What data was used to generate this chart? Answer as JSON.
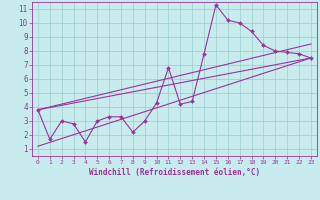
{
  "xlabel": "Windchill (Refroidissement éolien,°C)",
  "bg_color": "#c8ecee",
  "line_color": "#993399",
  "grid_color": "#99cccc",
  "xlim": [
    -0.5,
    23.5
  ],
  "ylim": [
    0.5,
    11.5
  ],
  "xticks": [
    0,
    1,
    2,
    3,
    4,
    5,
    6,
    7,
    8,
    9,
    10,
    11,
    12,
    13,
    14,
    15,
    16,
    17,
    18,
    19,
    20,
    21,
    22,
    23
  ],
  "yticks": [
    1,
    2,
    3,
    4,
    5,
    6,
    7,
    8,
    9,
    10,
    11
  ],
  "main_x": [
    0,
    1,
    2,
    3,
    4,
    5,
    6,
    7,
    8,
    9,
    10,
    11,
    12,
    13,
    14,
    15,
    16,
    17,
    18,
    19,
    20,
    21,
    22,
    23
  ],
  "main_y": [
    3.8,
    1.7,
    3.0,
    2.8,
    1.5,
    3.0,
    3.3,
    3.3,
    2.2,
    3.0,
    4.3,
    6.8,
    4.2,
    4.4,
    7.8,
    11.3,
    10.2,
    10.0,
    9.4,
    8.4,
    8.0,
    7.9,
    7.8,
    7.5
  ],
  "line1_x": [
    0,
    23
  ],
  "line1_y": [
    3.8,
    8.5
  ],
  "line2_x": [
    0,
    23
  ],
  "line2_y": [
    3.8,
    7.5
  ],
  "line3_x": [
    0,
    23
  ],
  "line3_y": [
    1.2,
    7.5
  ]
}
